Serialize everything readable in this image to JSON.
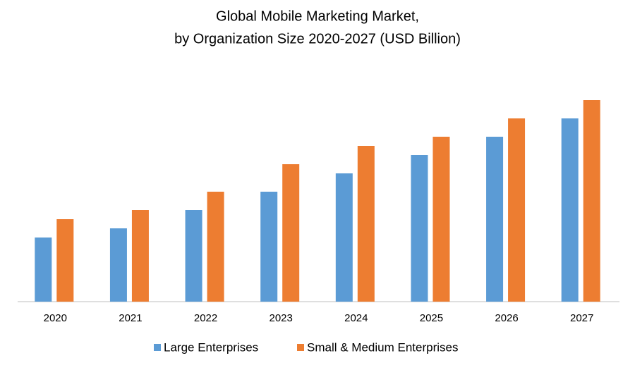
{
  "chart_data": {
    "type": "bar",
    "title": [
      "Global Mobile Marketing Market,",
      "by Organization Size 2020-2027 (USD Billion)"
    ],
    "categories": [
      "2020",
      "2021",
      "2022",
      "2023",
      "2024",
      "2025",
      "2026",
      "2027"
    ],
    "series": [
      {
        "name": "Large Enterprises",
        "color": "#5b9bd5",
        "values": [
          7,
          8,
          10,
          12,
          14,
          16,
          18,
          20
        ]
      },
      {
        "name": "Small & Medium Enterprises",
        "color": "#ed7d31",
        "values": [
          9,
          10,
          12,
          15,
          17,
          18,
          20,
          22
        ]
      }
    ],
    "ylim": [
      0,
      25
    ],
    "grid": false,
    "legend": "bottom"
  }
}
